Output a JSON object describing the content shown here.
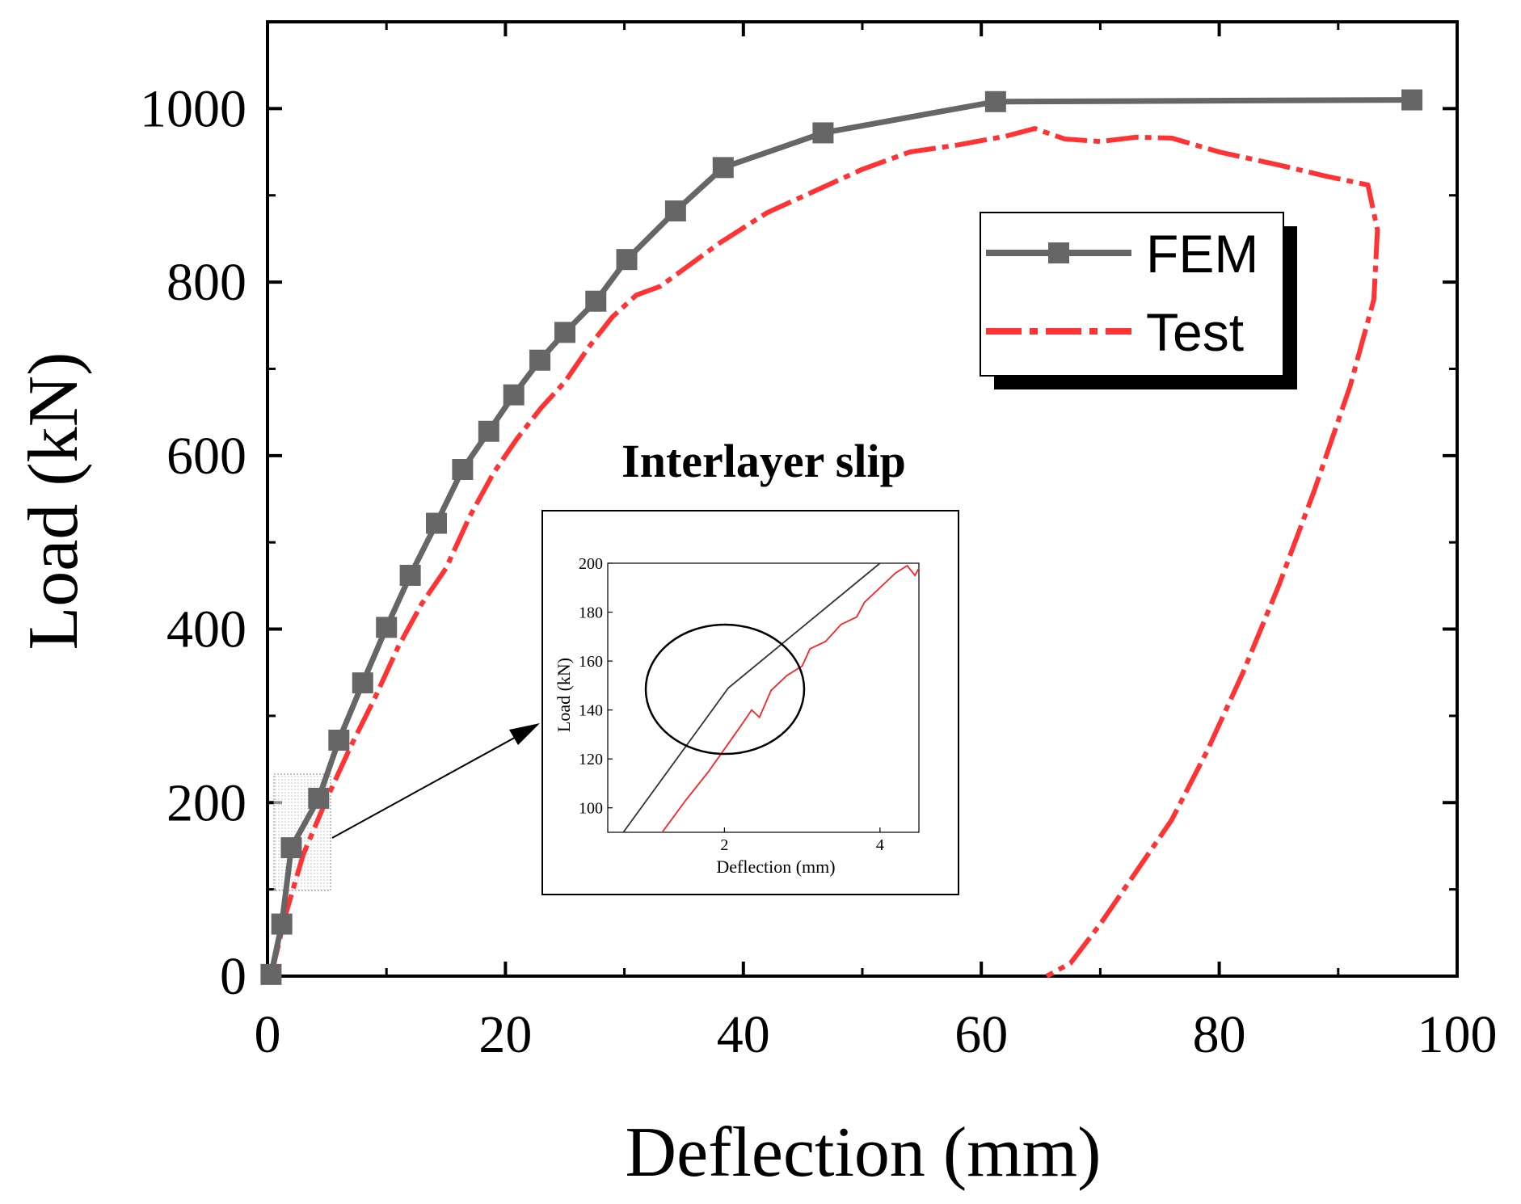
{
  "chart_data": [
    {
      "type": "line",
      "title": "",
      "xlabel": "Deflection (mm)",
      "ylabel": "Load (kN)",
      "xlim": [
        0,
        100
      ],
      "ylim": [
        0,
        1100
      ],
      "xticks": [
        0,
        20,
        40,
        60,
        80,
        100
      ],
      "yticks": [
        0,
        200,
        400,
        600,
        800,
        1000
      ],
      "legend": {
        "position": "top-right",
        "entries": [
          "FEM",
          "Test"
        ]
      },
      "series": [
        {
          "name": "FEM",
          "color": "#666666",
          "marker": "square",
          "x": [
            0.3,
            1.2,
            2.0,
            4.3,
            6.0,
            8.0,
            10.0,
            12.0,
            14.2,
            16.4,
            18.6,
            20.7,
            22.9,
            25.0,
            27.6,
            30.2,
            34.3,
            38.3,
            46.7,
            61.2,
            96.2
          ],
          "y": [
            2,
            60,
            148,
            205,
            272,
            338,
            402,
            462,
            522,
            584,
            628,
            670,
            710,
            742,
            778,
            826,
            882,
            932,
            972,
            1008,
            1010
          ]
        },
        {
          "name": "Test",
          "color": "#ff3333",
          "marker": "none",
          "x": [
            0.3,
            1.5,
            3.0,
            5.0,
            7.0,
            9.0,
            11.0,
            13.0,
            15.0,
            17.0,
            19.0,
            21.0,
            23.0,
            25.0,
            27.0,
            29.0,
            31.0,
            33.0,
            35.0,
            38.0,
            42.0,
            46.0,
            50.0,
            54.0,
            58.0,
            62.0,
            64.5,
            67.0,
            70.0,
            73.0,
            76.0,
            80.0,
            85.0,
            89.0,
            92.5,
            93.3,
            93.0,
            91.0,
            88.0,
            85.0,
            82.0,
            79.0,
            76.0,
            73.0,
            70.0,
            67.5,
            65.5
          ],
          "y": [
            0,
            70,
            140,
            205,
            265,
            320,
            380,
            430,
            470,
            530,
            580,
            620,
            655,
            685,
            725,
            760,
            785,
            795,
            815,
            845,
            880,
            905,
            930,
            950,
            958,
            968,
            977,
            965,
            962,
            967,
            966,
            950,
            935,
            922,
            912,
            860,
            780,
            680,
            560,
            450,
            350,
            260,
            180,
            120,
            60,
            15,
            0
          ]
        }
      ]
    },
    {
      "type": "line",
      "title": "Interlayer slip",
      "xlabel": "Deflection (mm)",
      "ylabel": "Load (kN)",
      "xlim": [
        0.5,
        4.5
      ],
      "ylim": [
        90,
        200
      ],
      "xticks": [
        2,
        4
      ],
      "yticks": [
        100,
        120,
        140,
        160,
        180,
        200
      ],
      "series": [
        {
          "name": "FEM",
          "color": "#333333",
          "x": [
            0.7,
            2.05,
            4.0
          ],
          "y": [
            90,
            149,
            200
          ]
        },
        {
          "name": "Test",
          "color": "#ff2222",
          "x": [
            1.2,
            1.5,
            1.8,
            2.0,
            2.2,
            2.35,
            2.45,
            2.6,
            2.8,
            3.0,
            3.1,
            3.3,
            3.5,
            3.7,
            3.8,
            4.0,
            4.2,
            4.35,
            4.45,
            4.5
          ],
          "y": [
            90,
            103,
            115,
            124,
            133,
            140,
            137,
            148,
            154,
            158,
            165,
            168,
            175,
            178,
            184,
            190,
            196,
            199,
            195,
            198
          ]
        }
      ]
    }
  ]
}
